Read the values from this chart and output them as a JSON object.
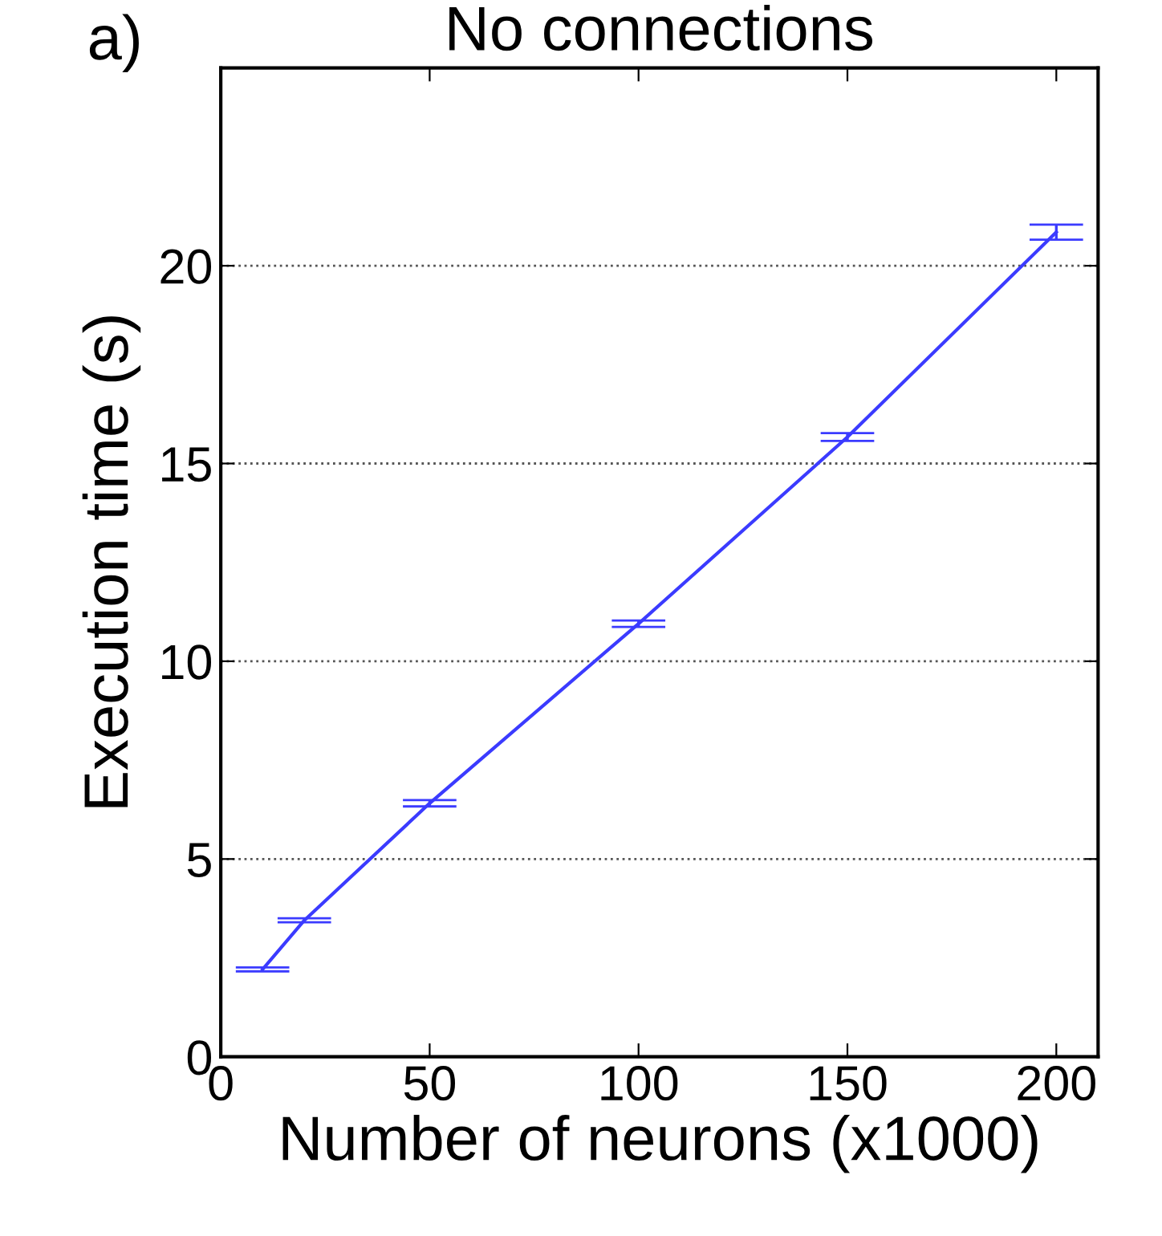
{
  "chart_data": {
    "type": "line",
    "title": "No connections",
    "annotations": [
      "a)"
    ],
    "xlabel": "Number of neurons (x1000)",
    "ylabel": "Execution time (s)",
    "x": [
      10,
      20,
      50,
      100,
      150,
      200
    ],
    "series": [
      {
        "color": "#3b3bff",
        "values": [
          2.21,
          3.45,
          6.41,
          10.95,
          15.67,
          20.85
        ],
        "errors": [
          0.05,
          0.05,
          0.08,
          0.08,
          0.1,
          0.19
        ]
      }
    ],
    "xlim": [
      0,
      210
    ],
    "xticks": [
      0,
      50,
      100,
      150,
      200
    ],
    "ylim": [
      0,
      25
    ],
    "yticks": [
      0,
      5,
      10,
      15,
      20
    ],
    "grid": "y",
    "legend": false,
    "marker": "none",
    "line_style": "solid"
  }
}
